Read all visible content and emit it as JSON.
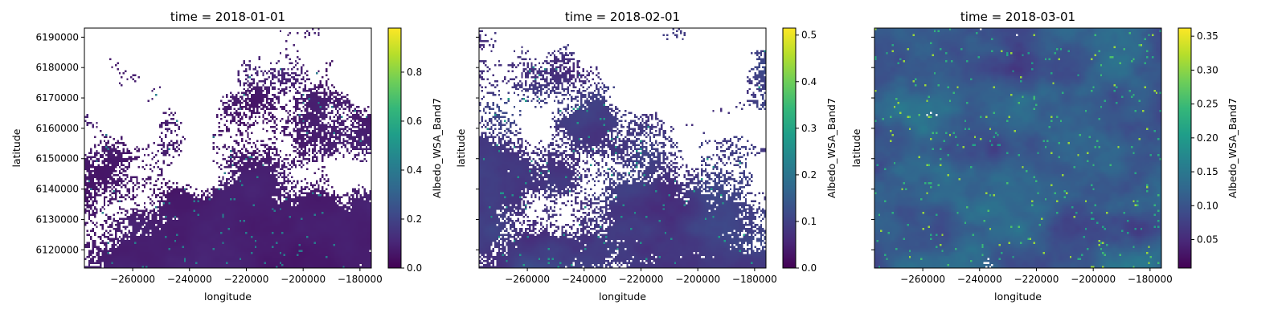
{
  "chart_data": [
    {
      "type": "heatmap",
      "title": "time = 2018-01-01",
      "xlabel": "longitude",
      "ylabel": "latitude",
      "xlim": [
        -277000,
        -176000
      ],
      "ylim": [
        6114000,
        6193000
      ],
      "xticks": [
        -260000,
        -240000,
        -220000,
        -200000,
        -180000
      ],
      "xtick_labels": [
        "−260000",
        "−240000",
        "−220000",
        "−200000",
        "−180000"
      ],
      "yticks": [
        6120000,
        6130000,
        6140000,
        6150000,
        6160000,
        6170000,
        6180000,
        6190000
      ],
      "ytick_labels": [
        "6120000",
        "6130000",
        "6140000",
        "6150000",
        "6160000",
        "6170000",
        "6180000",
        "6190000"
      ],
      "colorbar": {
        "label": "Albedo_WSA_Band7",
        "colormap": "viridis",
        "range": [
          0,
          0.98
        ],
        "ticks": [
          0,
          0.2,
          0.4,
          0.6,
          0.8
        ],
        "tick_labels": [
          "0.0",
          "0.2",
          "0.4",
          "0.6",
          "0.8"
        ]
      },
      "field": {
        "typical_value": 0.08,
        "cloud_gap_fraction": 0.42,
        "gaps_concentrated": "upper half"
      }
    },
    {
      "type": "heatmap",
      "title": "time = 2018-02-01",
      "xlabel": "longitude",
      "ylabel": "latitude",
      "xlim": [
        -277000,
        -176000
      ],
      "ylim": [
        6114000,
        6193000
      ],
      "xticks": [
        -260000,
        -240000,
        -220000,
        -200000,
        -180000
      ],
      "xtick_labels": [
        "−260000",
        "−240000",
        "−220000",
        "−200000",
        "−180000"
      ],
      "yticks": [
        6120000,
        6130000,
        6140000,
        6150000,
        6160000,
        6170000,
        6180000,
        6190000
      ],
      "ytick_labels": [],
      "colorbar": {
        "label": "Albedo_WSA_Band7",
        "colormap": "viridis",
        "range": [
          0,
          0.515
        ],
        "ticks": [
          0,
          0.1,
          0.2,
          0.3,
          0.4,
          0.5
        ],
        "tick_labels": [
          "0.0",
          "0.1",
          "0.2",
          "0.3",
          "0.4",
          "0.5"
        ]
      },
      "field": {
        "typical_value": 0.09,
        "cloud_gap_fraction": 0.4,
        "gaps_concentrated": "upper half"
      }
    },
    {
      "type": "heatmap",
      "title": "time = 2018-03-01",
      "xlabel": "longitude",
      "ylabel": "latitude",
      "xlim": [
        -277000,
        -176000
      ],
      "ylim": [
        6114000,
        6193000
      ],
      "xticks": [
        -260000,
        -240000,
        -220000,
        -200000,
        -180000
      ],
      "xtick_labels": [
        "−260000",
        "−240000",
        "−220000",
        "−200000",
        "−180000"
      ],
      "yticks": [
        6120000,
        6130000,
        6140000,
        6150000,
        6160000,
        6170000,
        6180000,
        6190000
      ],
      "ytick_labels": [],
      "colorbar": {
        "label": "Albedo_WSA_Band7",
        "colormap": "viridis",
        "range": [
          0.008,
          0.362
        ],
        "ticks": [
          0.05,
          0.1,
          0.15,
          0.2,
          0.25,
          0.3,
          0.35
        ],
        "tick_labels": [
          "0.05",
          "0.10",
          "0.15",
          "0.20",
          "0.25",
          "0.30",
          "0.35"
        ]
      },
      "field": {
        "typical_value": 0.12,
        "cloud_gap_fraction": 0.1,
        "gaps_concentrated": "scattered"
      }
    }
  ]
}
